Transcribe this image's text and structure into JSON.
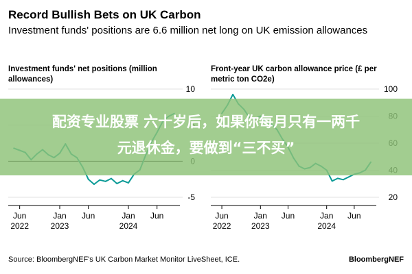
{
  "header": {
    "title": "Record Bullish Bets on UK Carbon",
    "subtitle": "Investment funds' positions are 6.6 million net long on UK emission allowances"
  },
  "footer": {
    "source": "Source: BloombergNEF's UK Carbon Market Monitor LiveSheet, ICE.",
    "brand": "BloombergNEF"
  },
  "overlay": {
    "line1": "配资专业股票 六十岁后，如果你每月只有一两千",
    "line2": "元退休金，要做到“三不买”"
  },
  "colors": {
    "line": "#0a9a96",
    "axis": "#000000",
    "grid": "#d9d9d9"
  },
  "chart_data": [
    {
      "type": "line",
      "title": "Investment funds' net positions (million allowances)",
      "ylim": [
        -5,
        10
      ],
      "yticks": [
        10,
        5,
        0,
        -5
      ],
      "ytick_labels": [
        "10",
        "5",
        "0",
        "-5"
      ],
      "xticks": [
        {
          "x": "2022-06",
          "lines": [
            "Jun",
            "2022"
          ]
        },
        {
          "x": "2023-01",
          "lines": [
            "Jan",
            "2023"
          ]
        },
        {
          "x": "2023-06",
          "lines": [
            "Jun",
            ""
          ]
        },
        {
          "x": "2024-01",
          "lines": [
            "Jan",
            "2024"
          ]
        },
        {
          "x": "2024-06",
          "lines": [
            "Jun",
            ""
          ]
        }
      ],
      "x_range": [
        "2022-04",
        "2024-10"
      ],
      "series": [
        {
          "x": [
            "2022-05",
            "2022-06",
            "2022-07",
            "2022-08",
            "2022-09",
            "2022-10",
            "2022-11",
            "2022-12",
            "2023-01",
            "2023-02",
            "2023-03",
            "2023-04",
            "2023-05",
            "2023-06",
            "2023-07",
            "2023-08",
            "2023-09",
            "2023-10",
            "2023-11",
            "2023-12",
            "2024-01",
            "2024-02",
            "2024-03",
            "2024-04",
            "2024-05",
            "2024-06",
            "2024-07",
            "2024-08",
            "2024-09"
          ],
          "values": [
            1.8,
            1.5,
            1.2,
            0.2,
            1.0,
            1.6,
            0.9,
            0.5,
            1.1,
            2.4,
            1.0,
            0.5,
            -0.8,
            -2.5,
            -3.2,
            -2.6,
            -2.8,
            -2.4,
            -3.1,
            -2.7,
            -3.0,
            -1.8,
            -1.2,
            0.8,
            2.6,
            4.0,
            5.5,
            6.2,
            6.6
          ]
        }
      ]
    },
    {
      "type": "line",
      "title": "Front-year UK carbon allowance price (£ per metric ton CO2e)",
      "ylim": [
        20,
        100
      ],
      "yticks": [
        100,
        80,
        60,
        40,
        20
      ],
      "ytick_labels": [
        "100",
        "80",
        "60",
        "40",
        "20"
      ],
      "xticks": [
        {
          "x": "2022-06",
          "lines": [
            "Jun",
            "2022"
          ]
        },
        {
          "x": "2023-01",
          "lines": [
            "Jan",
            "2023"
          ]
        },
        {
          "x": "2023-06",
          "lines": [
            "Jun",
            ""
          ]
        },
        {
          "x": "2024-01",
          "lines": [
            "Jan",
            "2024"
          ]
        },
        {
          "x": "2024-06",
          "lines": [
            "Jun",
            ""
          ]
        }
      ],
      "x_range": [
        "2022-04",
        "2024-10"
      ],
      "series": [
        {
          "x": [
            "2022-06",
            "2022-07",
            "2022-08",
            "2022-09",
            "2022-10",
            "2022-11",
            "2022-12",
            "2023-01",
            "2023-02",
            "2023-03",
            "2023-04",
            "2023-05",
            "2023-06",
            "2023-07",
            "2023-08",
            "2023-09",
            "2023-10",
            "2023-11",
            "2023-12",
            "2024-01",
            "2024-02",
            "2024-03",
            "2024-04",
            "2024-05",
            "2024-06",
            "2024-07",
            "2024-08",
            "2024-09"
          ],
          "values": [
            82,
            88,
            96,
            89,
            85,
            79,
            78,
            80,
            76,
            74,
            70,
            63,
            57,
            49,
            43,
            41,
            42,
            45,
            43,
            40,
            32,
            34,
            33,
            35,
            37,
            38,
            40,
            46
          ]
        }
      ]
    }
  ]
}
